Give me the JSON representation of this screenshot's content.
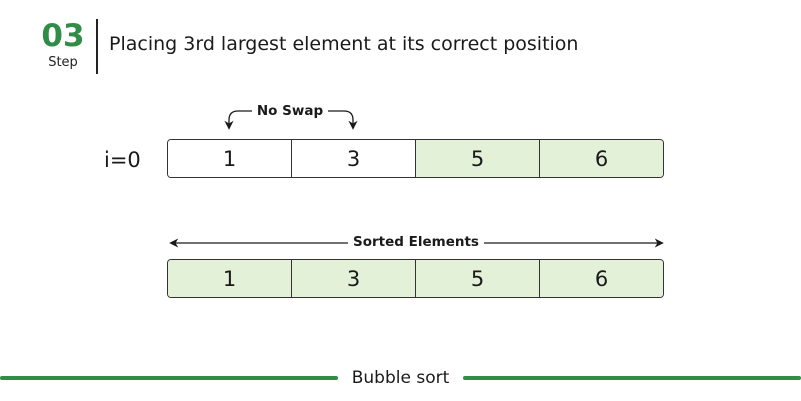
{
  "header": {
    "step_number": "03",
    "step_label": "Step",
    "title": "Placing 3rd largest element at its correct position"
  },
  "iteration": {
    "label": "i=0",
    "annotation": "No Swap",
    "cells": [
      {
        "value": "1",
        "sorted": false
      },
      {
        "value": "3",
        "sorted": false
      },
      {
        "value": "5",
        "sorted": true
      },
      {
        "value": "6",
        "sorted": true
      }
    ]
  },
  "sorted": {
    "label": "Sorted Elements",
    "cells": [
      {
        "value": "1",
        "sorted": true
      },
      {
        "value": "3",
        "sorted": true
      },
      {
        "value": "5",
        "sorted": true
      },
      {
        "value": "6",
        "sorted": true
      }
    ]
  },
  "footer": {
    "title": "Bubble sort"
  },
  "colors": {
    "brand_green": "#2f8d46",
    "sorted_fill": "#e3f1d9",
    "unsorted_fill": "#ffffff"
  }
}
